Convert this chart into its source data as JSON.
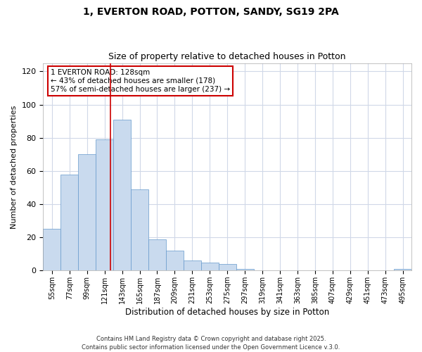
{
  "title1": "1, EVERTON ROAD, POTTON, SANDY, SG19 2PA",
  "title2": "Size of property relative to detached houses in Potton",
  "xlabel": "Distribution of detached houses by size in Potton",
  "ylabel": "Number of detached properties",
  "annotation_line1": "1 EVERTON ROAD: 128sqm",
  "annotation_line2": "← 43% of detached houses are smaller (178)",
  "annotation_line3": "57% of semi-detached houses are larger (237) →",
  "bar_color": "#c9daee",
  "bar_edge_color": "#6699cc",
  "vline_color": "#cc0000",
  "vline_x": 128,
  "background_color": "#ffffff",
  "grid_color": "#d0d8e8",
  "categories": [
    55,
    77,
    99,
    121,
    143,
    165,
    187,
    209,
    231,
    253,
    275,
    297,
    319,
    341,
    363,
    385,
    407,
    429,
    451,
    473,
    495
  ],
  "bin_width": 22,
  "values": [
    25,
    58,
    70,
    79,
    91,
    49,
    19,
    12,
    6,
    5,
    4,
    1,
    0,
    0,
    0,
    0,
    0,
    0,
    0,
    0,
    1
  ],
  "ylim": [
    0,
    125
  ],
  "yticks": [
    0,
    20,
    40,
    60,
    80,
    100,
    120
  ],
  "footnote": "Contains HM Land Registry data © Crown copyright and database right 2025.\nContains public sector information licensed under the Open Government Licence v.3.0.",
  "title1_fontsize": 10,
  "title2_fontsize": 9
}
